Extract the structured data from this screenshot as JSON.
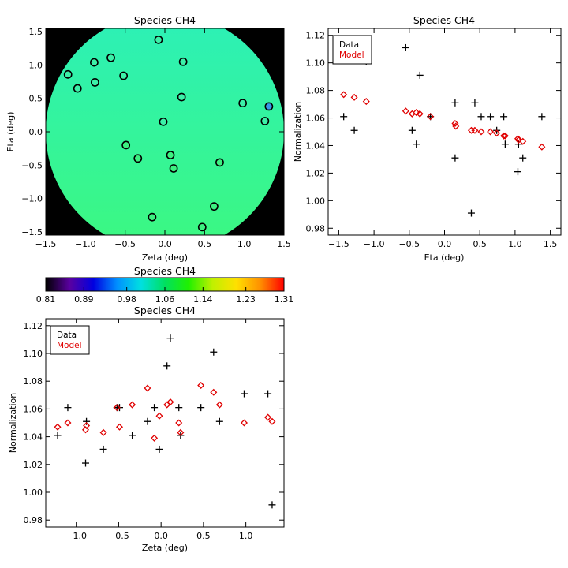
{
  "colors": {
    "background": "#ffffff",
    "axis": "#000000",
    "outside_field": "#000000",
    "field_fill": "#3cf880",
    "field_fill_top": "#2cf0b8",
    "data_marker": "#000000",
    "model_marker": "#e00000"
  },
  "chart_data": [
    {
      "id": "map",
      "type": "scatter",
      "title": "Species CH4",
      "xlabel": "Zeta (deg)",
      "ylabel": "Eta (deg)",
      "xlim": [
        -1.5,
        1.5
      ],
      "ylim": [
        -1.55,
        1.55
      ],
      "xticks": [
        -1.5,
        -1.0,
        -0.5,
        0.0,
        0.5,
        1.0,
        1.5
      ],
      "yticks": [
        -1.5,
        -1.0,
        -0.5,
        0.0,
        0.5,
        1.0,
        1.5
      ],
      "x_tick_labels": [
        "−1.5",
        "−1.0",
        "−0.5",
        "0.0",
        "0.5",
        "1.0",
        "1.5"
      ],
      "y_tick_labels": [
        "−1.5",
        "−1.0",
        "−0.5",
        "0.0",
        "0.5",
        "1.0",
        "1.5"
      ],
      "field_radius_deg": 1.5,
      "points": [
        {
          "x": -0.08,
          "y": 1.38,
          "color": "#3cf0a8"
        },
        {
          "x": -0.68,
          "y": 1.11,
          "color": "#3cf0a8"
        },
        {
          "x": -0.89,
          "y": 1.04,
          "color": "#3cf0a8"
        },
        {
          "x": 0.23,
          "y": 1.05,
          "color": "#3cf0a8"
        },
        {
          "x": -1.22,
          "y": 0.86,
          "color": "#3cf0a8"
        },
        {
          "x": -0.52,
          "y": 0.84,
          "color": "#3cf0a8"
        },
        {
          "x": -0.88,
          "y": 0.74,
          "color": "#3cf0a8"
        },
        {
          "x": -1.1,
          "y": 0.65,
          "color": "#3cf0a8"
        },
        {
          "x": 0.21,
          "y": 0.52,
          "color": "#3cf0a8"
        },
        {
          "x": 0.98,
          "y": 0.43,
          "color": "#3cf0a8"
        },
        {
          "x": 1.31,
          "y": 0.38,
          "color": "#3a98e8"
        },
        {
          "x": 1.26,
          "y": 0.16,
          "color": "#3cf0a8"
        },
        {
          "x": -0.02,
          "y": 0.15,
          "color": "#3cf0a8"
        },
        {
          "x": -0.49,
          "y": -0.2,
          "color": "#3cf080"
        },
        {
          "x": 0.07,
          "y": -0.35,
          "color": "#3cf080"
        },
        {
          "x": -0.34,
          "y": -0.4,
          "color": "#3cf080"
        },
        {
          "x": 0.69,
          "y": -0.46,
          "color": "#3cf080"
        },
        {
          "x": 0.11,
          "y": -0.55,
          "color": "#3cf080"
        },
        {
          "x": 0.62,
          "y": -1.12,
          "color": "#3cf080"
        },
        {
          "x": -0.16,
          "y": -1.28,
          "color": "#3cf080"
        },
        {
          "x": 0.47,
          "y": -1.43,
          "color": "#3cf080"
        }
      ]
    },
    {
      "id": "colorbar",
      "type": "heatmap",
      "title": "Species CH4",
      "vmin": 0.81,
      "vmax": 1.31,
      "tick_values": [
        0.81,
        0.89,
        0.98,
        1.06,
        1.14,
        1.23,
        1.31
      ],
      "tick_labels": [
        "0.81",
        "0.89",
        "0.98",
        "1.06",
        "1.14",
        "1.23",
        "1.31"
      ],
      "colormap": [
        "#000000",
        "#5a00a0",
        "#0000e0",
        "#0090ff",
        "#00e0e0",
        "#00e060",
        "#20f000",
        "#c0f000",
        "#ffe000",
        "#ff9000",
        "#ff0000"
      ]
    },
    {
      "id": "norm-eta",
      "type": "scatter",
      "title": "Species CH4",
      "xlabel": "Eta (deg)",
      "ylabel": "Normalization",
      "xlim": [
        -1.65,
        1.65
      ],
      "ylim": [
        0.975,
        1.125
      ],
      "xticks": [
        -1.5,
        -1.0,
        -0.5,
        0.0,
        0.5,
        1.0,
        1.5
      ],
      "yticks": [
        0.98,
        1.0,
        1.02,
        1.04,
        1.06,
        1.08,
        1.1,
        1.12
      ],
      "x_tick_labels": [
        "−1.5",
        "−1.0",
        "−0.5",
        "0.0",
        "0.5",
        "1.0",
        "1.5"
      ],
      "y_tick_labels": [
        "0.98",
        "1.00",
        "1.02",
        "1.04",
        "1.06",
        "1.08",
        "1.10",
        "1.12"
      ],
      "legend": {
        "placement": "top-left",
        "entries": [
          "Data",
          "Model"
        ]
      },
      "series": [
        {
          "name": "Data",
          "marker": "plus",
          "color": "#000000",
          "points": [
            [
              -1.43,
              1.061
            ],
            [
              -1.28,
              1.051
            ],
            [
              -1.11,
              1.101
            ],
            [
              -0.55,
              1.111
            ],
            [
              -0.46,
              1.051
            ],
            [
              -0.4,
              1.041
            ],
            [
              -0.35,
              1.091
            ],
            [
              -0.2,
              1.061
            ],
            [
              0.15,
              1.071
            ],
            [
              0.15,
              1.031
            ],
            [
              0.38,
              0.991
            ],
            [
              0.43,
              1.071
            ],
            [
              0.52,
              1.061
            ],
            [
              0.65,
              1.061
            ],
            [
              0.74,
              1.051
            ],
            [
              0.84,
              1.061
            ],
            [
              0.86,
              1.041
            ],
            [
              1.04,
              1.021
            ],
            [
              1.05,
              1.041
            ],
            [
              1.11,
              1.031
            ],
            [
              1.38,
              1.061
            ]
          ]
        },
        {
          "name": "Model",
          "marker": "diamond",
          "color": "#e00000",
          "points": [
            [
              -1.43,
              1.077
            ],
            [
              -1.28,
              1.075
            ],
            [
              -1.11,
              1.072
            ],
            [
              -0.55,
              1.065
            ],
            [
              -0.46,
              1.063
            ],
            [
              -0.4,
              1.064
            ],
            [
              -0.35,
              1.063
            ],
            [
              -0.2,
              1.061
            ],
            [
              0.15,
              1.056
            ],
            [
              0.16,
              1.054
            ],
            [
              0.38,
              1.051
            ],
            [
              0.43,
              1.051
            ],
            [
              0.52,
              1.05
            ],
            [
              0.65,
              1.05
            ],
            [
              0.74,
              1.049
            ],
            [
              0.84,
              1.047
            ],
            [
              0.86,
              1.047
            ],
            [
              1.04,
              1.045
            ],
            [
              1.05,
              1.044
            ],
            [
              1.11,
              1.043
            ],
            [
              1.38,
              1.039
            ]
          ]
        }
      ]
    },
    {
      "id": "norm-zeta",
      "type": "scatter",
      "title": "Species CH4",
      "xlabel": "Zeta (deg)",
      "ylabel": "Normalization",
      "xlim": [
        -1.36,
        1.45
      ],
      "ylim": [
        0.975,
        1.125
      ],
      "xticks": [
        -1.0,
        -0.5,
        0.0,
        0.5,
        1.0
      ],
      "yticks": [
        0.98,
        1.0,
        1.02,
        1.04,
        1.06,
        1.08,
        1.1,
        1.12
      ],
      "x_tick_labels": [
        "−1.0",
        "−0.5",
        "0.0",
        "0.5",
        "1.0"
      ],
      "y_tick_labels": [
        "0.98",
        "1.00",
        "1.02",
        "1.04",
        "1.06",
        "1.08",
        "1.10",
        "1.12"
      ],
      "legend": {
        "placement": "top-left",
        "entries": [
          "Data",
          "Model"
        ]
      },
      "series": [
        {
          "name": "Data",
          "marker": "plus",
          "color": "#000000",
          "points": [
            [
              -1.22,
              1.041
            ],
            [
              -1.1,
              1.061
            ],
            [
              -0.89,
              1.021
            ],
            [
              -0.88,
              1.051
            ],
            [
              -0.68,
              1.031
            ],
            [
              -0.52,
              1.061
            ],
            [
              -0.49,
              1.061
            ],
            [
              -0.34,
              1.041
            ],
            [
              -0.16,
              1.051
            ],
            [
              -0.08,
              1.061
            ],
            [
              -0.02,
              1.031
            ],
            [
              0.07,
              1.091
            ],
            [
              0.11,
              1.111
            ],
            [
              0.21,
              1.061
            ],
            [
              0.23,
              1.041
            ],
            [
              0.47,
              1.061
            ],
            [
              0.62,
              1.101
            ],
            [
              0.69,
              1.051
            ],
            [
              0.98,
              1.071
            ],
            [
              1.26,
              1.071
            ],
            [
              1.31,
              0.991
            ]
          ]
        },
        {
          "name": "Model",
          "marker": "diamond",
          "color": "#e00000",
          "points": [
            [
              -1.22,
              1.047
            ],
            [
              -1.1,
              1.05
            ],
            [
              -0.89,
              1.045
            ],
            [
              -0.88,
              1.048
            ],
            [
              -0.68,
              1.043
            ],
            [
              -0.52,
              1.061
            ],
            [
              -0.49,
              1.047
            ],
            [
              -0.34,
              1.063
            ],
            [
              -0.16,
              1.075
            ],
            [
              -0.08,
              1.039
            ],
            [
              -0.02,
              1.055
            ],
            [
              0.07,
              1.063
            ],
            [
              0.11,
              1.065
            ],
            [
              0.21,
              1.05
            ],
            [
              0.23,
              1.043
            ],
            [
              0.47,
              1.077
            ],
            [
              0.62,
              1.072
            ],
            [
              0.69,
              1.063
            ],
            [
              0.98,
              1.05
            ],
            [
              1.26,
              1.054
            ],
            [
              1.31,
              1.051
            ]
          ]
        }
      ]
    }
  ]
}
